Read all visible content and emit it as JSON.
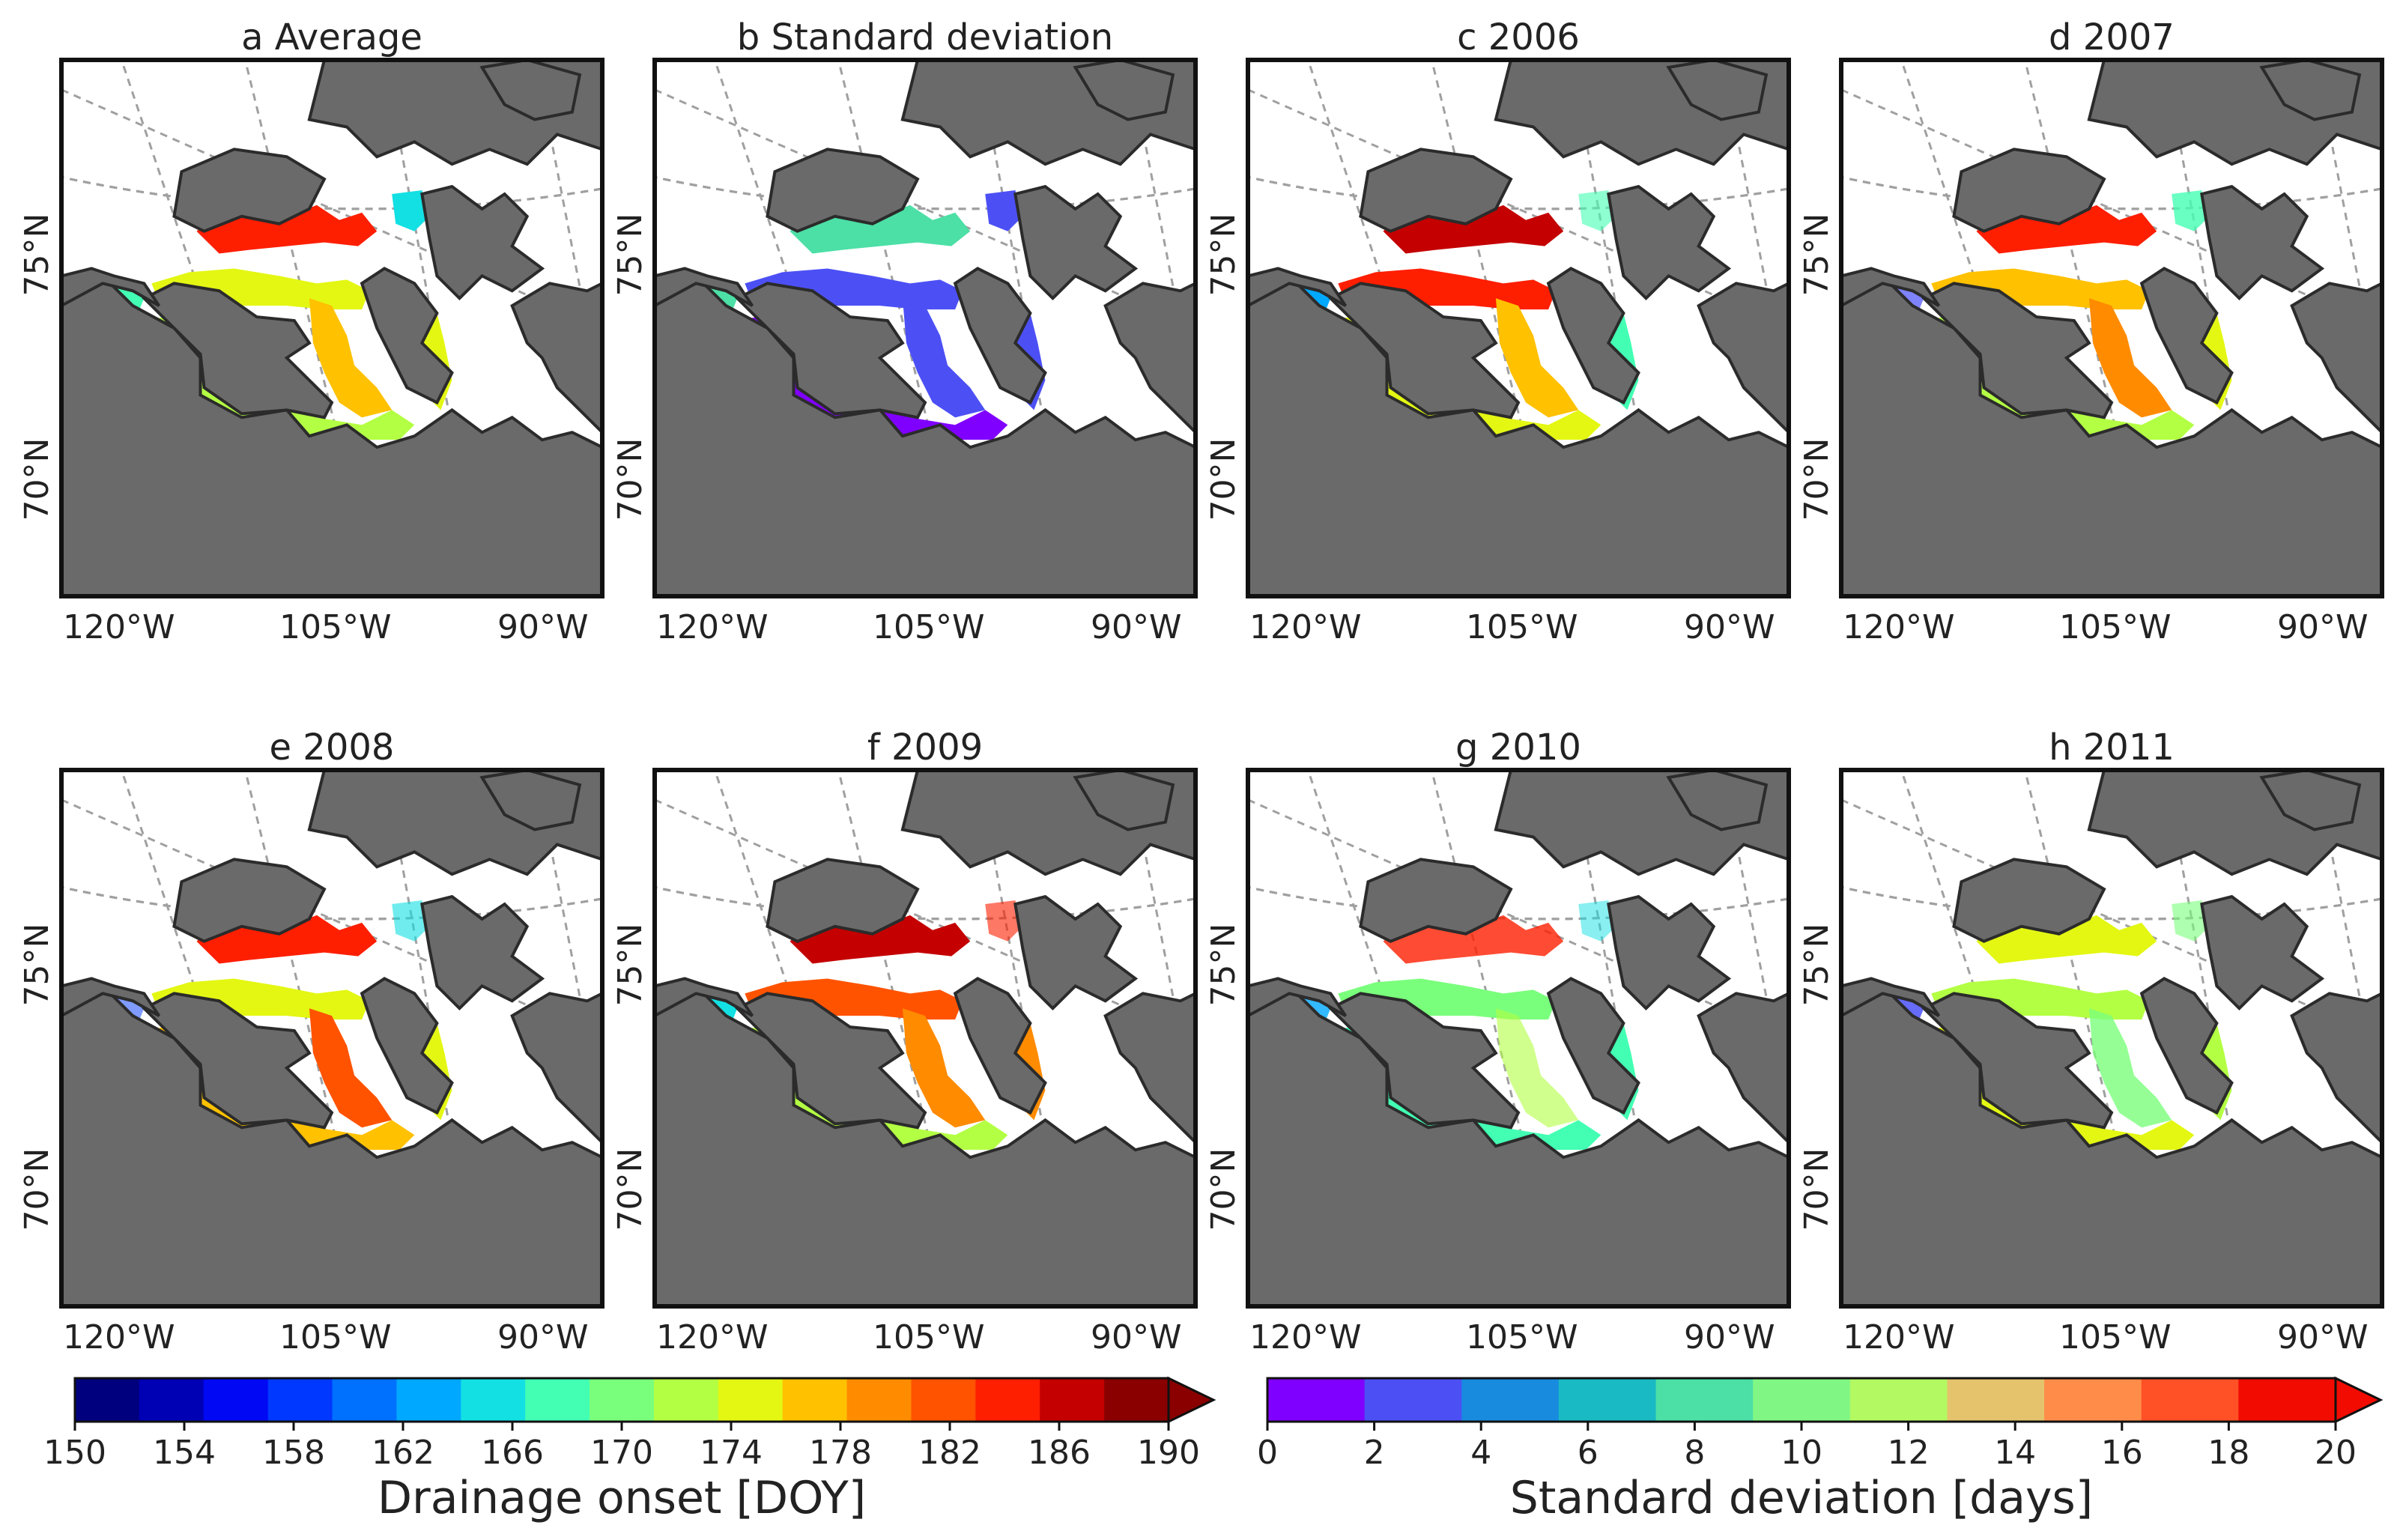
{
  "panels": [
    {
      "letter": "a",
      "label": "Average",
      "kind": "doy",
      "blobs": [
        {
          "v": 186,
          "s": 1.0
        },
        {
          "v": 176,
          "s": 1.0
        },
        {
          "v": 178,
          "s": 1.0
        },
        {
          "v": 168,
          "s": 1.0
        },
        {
          "v": 172,
          "s": 1.0
        },
        {
          "v": 174,
          "s": 1.0
        },
        {
          "v": 166,
          "s": 1.0
        }
      ]
    },
    {
      "letter": "b",
      "label": "Standard deviation",
      "kind": "std",
      "blobs": [
        {
          "v": 9,
          "s": 1.0
        },
        {
          "v": 3,
          "s": 1.0
        },
        {
          "v": 3,
          "s": 1.0
        },
        {
          "v": 8,
          "s": 1.0
        },
        {
          "v": 1,
          "s": 1.0
        },
        {
          "v": 2,
          "s": 1.0
        },
        {
          "v": 3,
          "s": 1.0
        }
      ]
    },
    {
      "letter": "c",
      "label": "2006",
      "kind": "doy",
      "blobs": [
        {
          "v": 187,
          "s": 1.0
        },
        {
          "v": 184,
          "s": 1.0
        },
        {
          "v": 178,
          "s": 1.0
        },
        {
          "v": 162,
          "s": 1.0
        },
        {
          "v": 176,
          "s": 1.0
        },
        {
          "v": 168,
          "s": 1.0
        },
        {
          "v": 168,
          "s": 0.6
        }
      ]
    },
    {
      "letter": "d",
      "label": "2007",
      "kind": "doy",
      "blobs": [
        {
          "v": 186,
          "s": 1.0
        },
        {
          "v": 177,
          "s": 1.0
        },
        {
          "v": 180,
          "s": 1.0
        },
        {
          "v": 156,
          "s": 0.5
        },
        {
          "v": 172,
          "s": 1.0
        },
        {
          "v": 176,
          "s": 1.0
        },
        {
          "v": 168,
          "s": 0.8
        }
      ]
    },
    {
      "letter": "e",
      "label": "2008",
      "kind": "doy",
      "blobs": [
        {
          "v": 186,
          "s": 1.0
        },
        {
          "v": 176,
          "s": 1.0
        },
        {
          "v": 182,
          "s": 1.0
        },
        {
          "v": 158,
          "s": 0.5
        },
        {
          "v": 178,
          "s": 1.0
        },
        {
          "v": 176,
          "s": 1.0
        },
        {
          "v": 166,
          "s": 0.6
        }
      ]
    },
    {
      "letter": "f",
      "label": "2009",
      "kind": "doy",
      "blobs": [
        {
          "v": 188,
          "s": 1.0
        },
        {
          "v": 182,
          "s": 1.0
        },
        {
          "v": 180,
          "s": 1.0
        },
        {
          "v": 166,
          "s": 1.0
        },
        {
          "v": 172,
          "s": 1.0
        },
        {
          "v": 180,
          "s": 1.0
        },
        {
          "v": 184,
          "s": 0.6
        }
      ]
    },
    {
      "letter": "g",
      "label": "2010",
      "kind": "doy",
      "blobs": [
        {
          "v": 185,
          "s": 0.8
        },
        {
          "v": 170,
          "s": 1.0
        },
        {
          "v": 172,
          "s": 0.6
        },
        {
          "v": 162,
          "s": 0.8
        },
        {
          "v": 168,
          "s": 1.0
        },
        {
          "v": 168,
          "s": 1.0
        },
        {
          "v": 166,
          "s": 0.5
        }
      ]
    },
    {
      "letter": "h",
      "label": "2011",
      "kind": "doy",
      "blobs": [
        {
          "v": 174,
          "s": 1.0
        },
        {
          "v": 172,
          "s": 1.0
        },
        {
          "v": 170,
          "s": 0.8
        },
        {
          "v": 156,
          "s": 0.6
        },
        {
          "v": 176,
          "s": 1.0
        },
        {
          "v": 172,
          "s": 1.0
        },
        {
          "v": 170,
          "s": 0.6
        }
      ]
    }
  ],
  "axis": {
    "lon_ticks": [
      "120°W",
      "105°W",
      "90°W"
    ],
    "lat_ticks": [
      "75°N",
      "70°N"
    ]
  },
  "colorbars": [
    {
      "id": "doy",
      "label": "Drainage onset [DOY]",
      "min": 150,
      "max": 190,
      "step": 4,
      "ticks": [
        150,
        154,
        158,
        162,
        166,
        170,
        174,
        178,
        182,
        186,
        190
      ],
      "extend": "max",
      "colors": [
        "#00007f",
        "#0000b5",
        "#0008f4",
        "#0038ff",
        "#0070ff",
        "#00a8ff",
        "#13e0e3",
        "#43ffb3",
        "#7aff7c",
        "#b3ff43",
        "#e3f713",
        "#ffc100",
        "#ff8b00",
        "#ff5300",
        "#fe1e00",
        "#c40000",
        "#8a0000"
      ]
    },
    {
      "id": "std",
      "label": "Standard deviation [days]",
      "min": 0,
      "max": 20,
      "step": 2,
      "ticks": [
        0,
        2,
        4,
        6,
        8,
        10,
        12,
        14,
        16,
        18,
        20
      ],
      "extend": "max",
      "colors": [
        "#8000ff",
        "#4c50f4",
        "#188bdf",
        "#1abac4",
        "#4cdfa6",
        "#80f784",
        "#b2f962",
        "#e4c36c",
        "#ff8c49",
        "#ff5026",
        "#f20b00"
      ]
    }
  ],
  "colors": {
    "land": "#6a6a6a",
    "coast": "#2b2b2b",
    "frame": "#111111",
    "grid": "#a0a0a0"
  }
}
